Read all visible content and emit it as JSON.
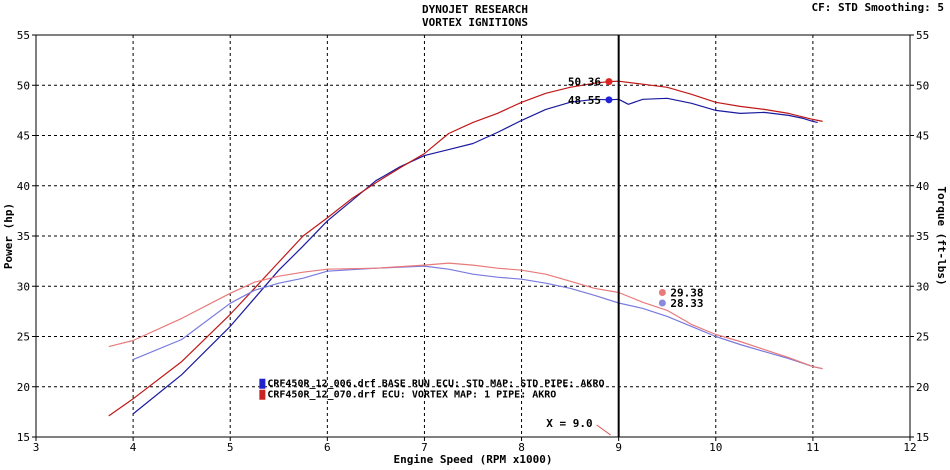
{
  "header": {
    "title": "DYNOJET RESEARCH",
    "subtitle": "VORTEX IGNITIONS",
    "settings": "CF: STD  Smoothing: 5"
  },
  "chart_data": {
    "type": "line",
    "xlabel": "Engine Speed (RPM x1000)",
    "ylabel": "Power (hp)",
    "y2label": "Torque (ft-lbs)",
    "xlim": [
      3,
      12
    ],
    "ylim": [
      15,
      55
    ],
    "y2lim": [
      15,
      55
    ],
    "x_ticks": [
      "3",
      "4",
      "5",
      "6",
      "7",
      "8",
      "9",
      "10",
      "11",
      "12"
    ],
    "y_ticks": [
      "15",
      "20",
      "25",
      "30",
      "35",
      "40",
      "45",
      "50",
      "55"
    ],
    "grid": true,
    "legend_position": "lower-left",
    "cursor": {
      "x": 9.0,
      "label": "X = 9.0"
    },
    "series": [
      {
        "name": "CRF450R_12_006.drf BASE RUN ECU: STD MAP: STD PIPE: AKRO",
        "measure": "power",
        "axis": "left",
        "color": "#1a1aa0",
        "x": [
          4.0,
          4.5,
          5.0,
          5.25,
          5.5,
          5.75,
          6.0,
          6.25,
          6.5,
          6.75,
          7.0,
          7.25,
          7.5,
          7.75,
          8.0,
          8.25,
          8.5,
          8.75,
          8.9,
          9.0,
          9.1,
          9.25,
          9.5,
          9.75,
          10.0,
          10.25,
          10.5,
          10.75,
          10.9,
          11.0,
          11.05
        ],
        "y": [
          17.3,
          21.2,
          26.0,
          28.8,
          31.6,
          34.0,
          36.5,
          38.5,
          40.5,
          41.9,
          43.0,
          43.6,
          44.2,
          45.3,
          46.5,
          47.6,
          48.3,
          48.6,
          48.55,
          48.6,
          48.1,
          48.6,
          48.7,
          48.2,
          47.5,
          47.2,
          47.3,
          47.0,
          46.7,
          46.4,
          46.3
        ]
      },
      {
        "name": "CRF450R_12_070.drf ECU: VORTEX MAP: 1 PIPE: AKRO",
        "measure": "power",
        "axis": "left",
        "color": "#c01818",
        "x": [
          3.75,
          4.0,
          4.5,
          5.0,
          5.25,
          5.5,
          5.75,
          6.0,
          6.25,
          6.5,
          6.75,
          7.0,
          7.25,
          7.5,
          7.75,
          8.0,
          8.25,
          8.5,
          8.75,
          8.9,
          9.0,
          9.25,
          9.5,
          9.75,
          10.0,
          10.25,
          10.5,
          10.75,
          11.0,
          11.1
        ],
        "y": [
          17.1,
          18.8,
          22.5,
          27.2,
          29.8,
          32.4,
          35.0,
          36.8,
          38.7,
          40.3,
          41.8,
          43.2,
          45.2,
          46.3,
          47.2,
          48.3,
          49.2,
          49.8,
          50.2,
          50.36,
          50.4,
          50.1,
          49.8,
          49.1,
          48.3,
          47.9,
          47.6,
          47.2,
          46.6,
          46.4
        ]
      },
      {
        "name": "CRF450R_12_006.drf BASE RUN ECU: STD MAP: STD PIPE: AKRO",
        "measure": "torque",
        "axis": "right",
        "color": "#7a7ae0",
        "x": [
          4.0,
          4.5,
          5.0,
          5.25,
          5.5,
          5.75,
          6.0,
          6.5,
          7.0,
          7.25,
          7.5,
          7.75,
          8.0,
          8.25,
          8.5,
          8.75,
          9.0,
          9.25,
          9.5,
          9.75,
          10.0,
          10.25,
          10.5,
          10.75,
          11.0,
          11.1
        ],
        "y": [
          22.7,
          24.7,
          28.3,
          29.6,
          30.3,
          30.8,
          31.5,
          31.8,
          32.0,
          31.7,
          31.2,
          30.9,
          30.7,
          30.3,
          29.8,
          29.1,
          28.33,
          27.8,
          27.0,
          26.0,
          25.0,
          24.2,
          23.5,
          22.8,
          22.0,
          21.8
        ]
      },
      {
        "name": "CRF450R_12_070.drf ECU: VORTEX MAP: 1 PIPE: AKRO",
        "measure": "torque",
        "axis": "right",
        "color": "#e87a7a",
        "x": [
          3.75,
          4.0,
          4.5,
          5.0,
          5.25,
          5.5,
          5.75,
          6.0,
          6.5,
          7.0,
          7.25,
          7.5,
          7.75,
          8.0,
          8.25,
          8.5,
          8.75,
          9.0,
          9.25,
          9.5,
          9.75,
          10.0,
          10.25,
          10.5,
          10.75,
          11.0,
          11.1
        ],
        "y": [
          24.0,
          24.6,
          26.8,
          29.3,
          30.4,
          31.0,
          31.4,
          31.7,
          31.8,
          32.1,
          32.3,
          32.1,
          31.8,
          31.6,
          31.2,
          30.5,
          29.8,
          29.38,
          28.4,
          27.6,
          26.2,
          25.2,
          24.5,
          23.7,
          22.9,
          22.0,
          21.8
        ]
      }
    ],
    "markers": [
      {
        "series_index": 1,
        "x": 8.9,
        "y": 50.36,
        "label": "50.36",
        "color": "#dd2222"
      },
      {
        "series_index": 0,
        "x": 8.9,
        "y": 48.55,
        "label": "48.55",
        "color": "#2222dd"
      },
      {
        "series_index": 3,
        "x": 9.45,
        "y": 29.38,
        "label": "29.38",
        "color": "#e87a7a"
      },
      {
        "series_index": 2,
        "x": 9.45,
        "y": 28.33,
        "label": "28.33",
        "color": "#8888dd"
      }
    ],
    "legend_entries": [
      {
        "color": "#2222cc",
        "label": "CRF450R_12_006.drf BASE RUN ECU: STD MAP: STD PIPE: AKRO"
      },
      {
        "color": "#cc2222",
        "label": "CRF450R_12_070.drf  ECU: VORTEX MAP: 1 PIPE: AKRO"
      }
    ]
  }
}
